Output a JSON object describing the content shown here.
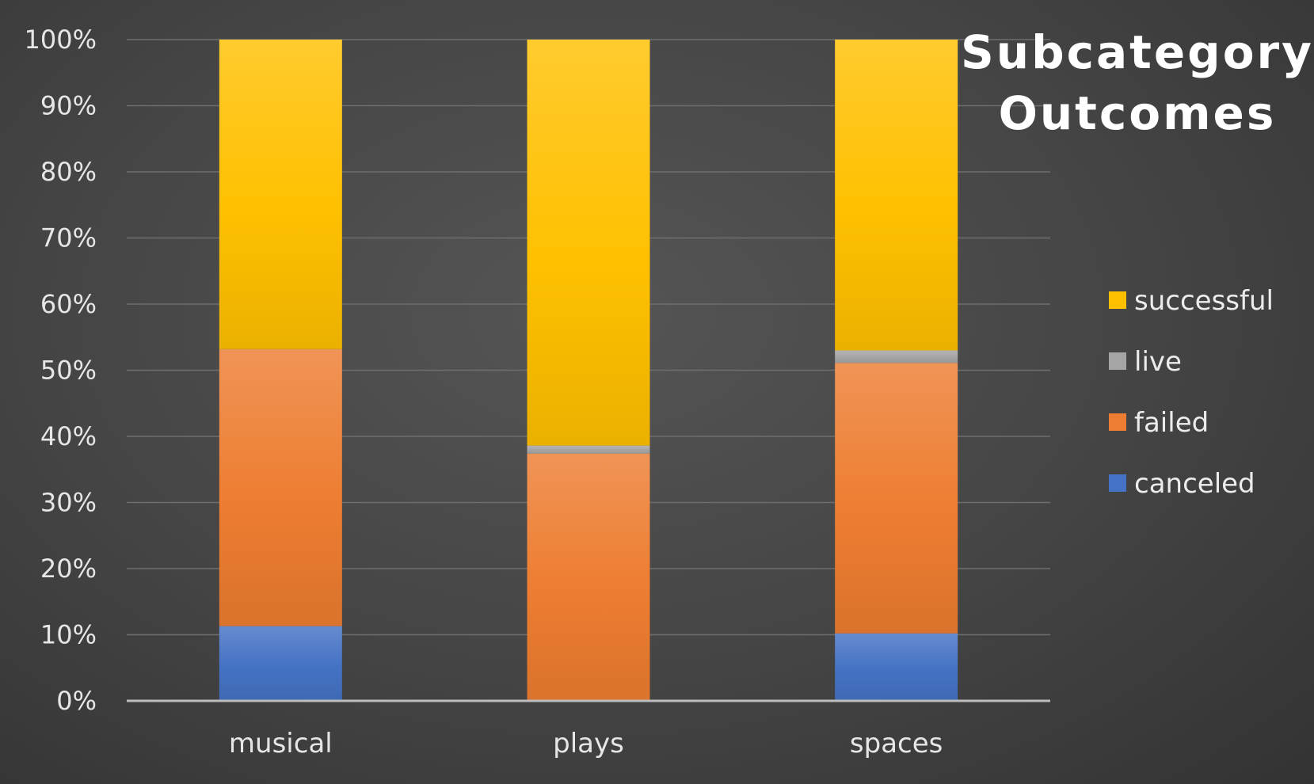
{
  "chart_data": {
    "type": "bar",
    "stacked": true,
    "title": [
      "Subcategory",
      "Outcomes"
    ],
    "categories": [
      "musical",
      "plays",
      "spaces"
    ],
    "series": [
      {
        "name": "canceled",
        "color": "#4472c4",
        "values": [
          11.3,
          0,
          10.2
        ]
      },
      {
        "name": "failed",
        "color": "#ed7d31",
        "values": [
          41.9,
          37.4,
          40.9
        ]
      },
      {
        "name": "live",
        "color": "#a5a5a5",
        "values": [
          0,
          1.2,
          1.9
        ]
      },
      {
        "name": "successful",
        "color": "#ffc000",
        "values": [
          46.8,
          61.4,
          47.0
        ]
      }
    ],
    "ylim": [
      0,
      100
    ],
    "yticks": [
      "0%",
      "10%",
      "20%",
      "30%",
      "40%",
      "50%",
      "60%",
      "70%",
      "80%",
      "90%",
      "100%"
    ],
    "grid": true,
    "legend_position": "right",
    "xlabel": "",
    "ylabel": ""
  }
}
